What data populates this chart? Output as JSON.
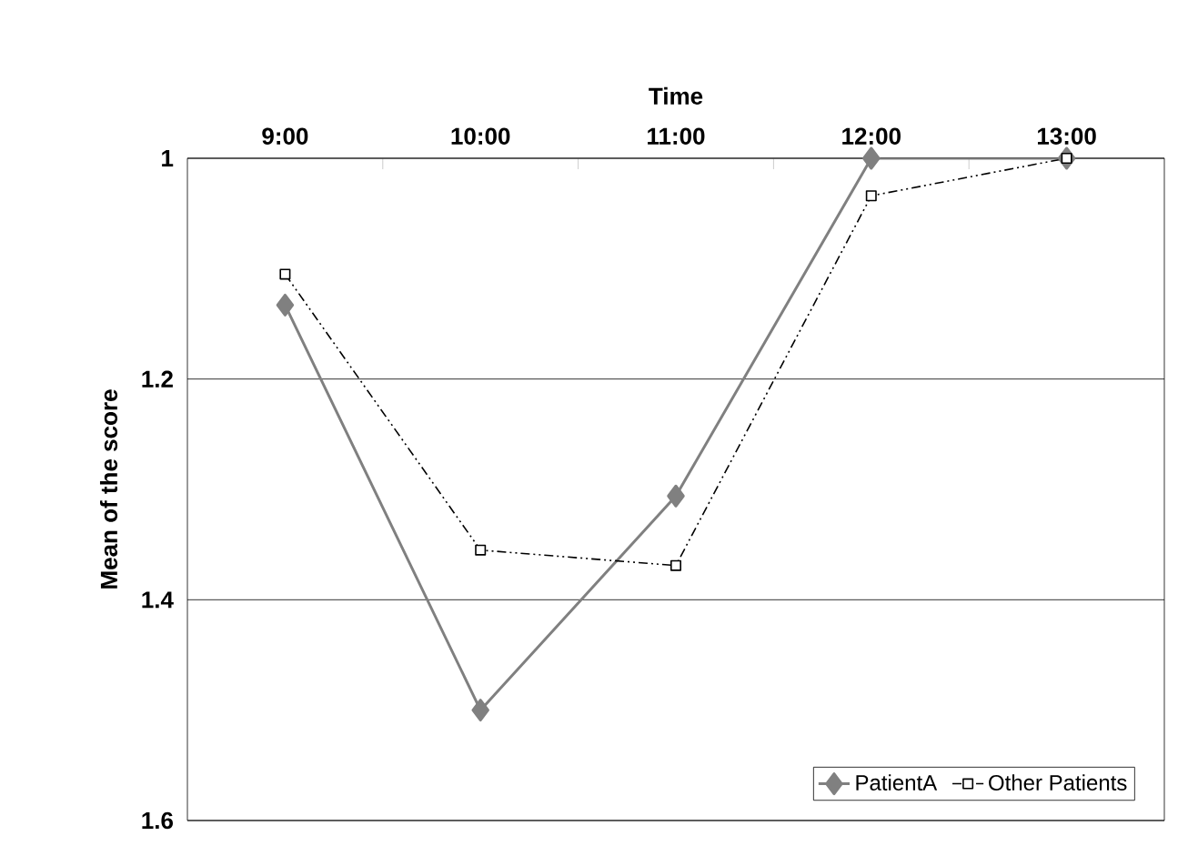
{
  "chart_data": {
    "type": "line",
    "xlabel": "Time",
    "ylabel": "Mean of the score",
    "categories": [
      "9:00",
      "10:00",
      "11:00",
      "12:00",
      "13:00"
    ],
    "series": [
      {
        "name": "PatientA",
        "color": "#808080",
        "marker": "diamond",
        "line_style": "solid",
        "values": [
          1.133,
          1.5,
          1.306,
          1.0,
          1.0
        ]
      },
      {
        "name": "Other Patients",
        "color": "#000000",
        "marker": "square",
        "line_style": "dashed",
        "values": [
          1.105,
          1.355,
          1.369,
          1.034,
          1.0
        ]
      }
    ],
    "ylim": [
      1.6,
      1
    ],
    "yticks": [
      1,
      1.2,
      1.4,
      1.6
    ],
    "grid": "y",
    "legend": "bottom right"
  }
}
